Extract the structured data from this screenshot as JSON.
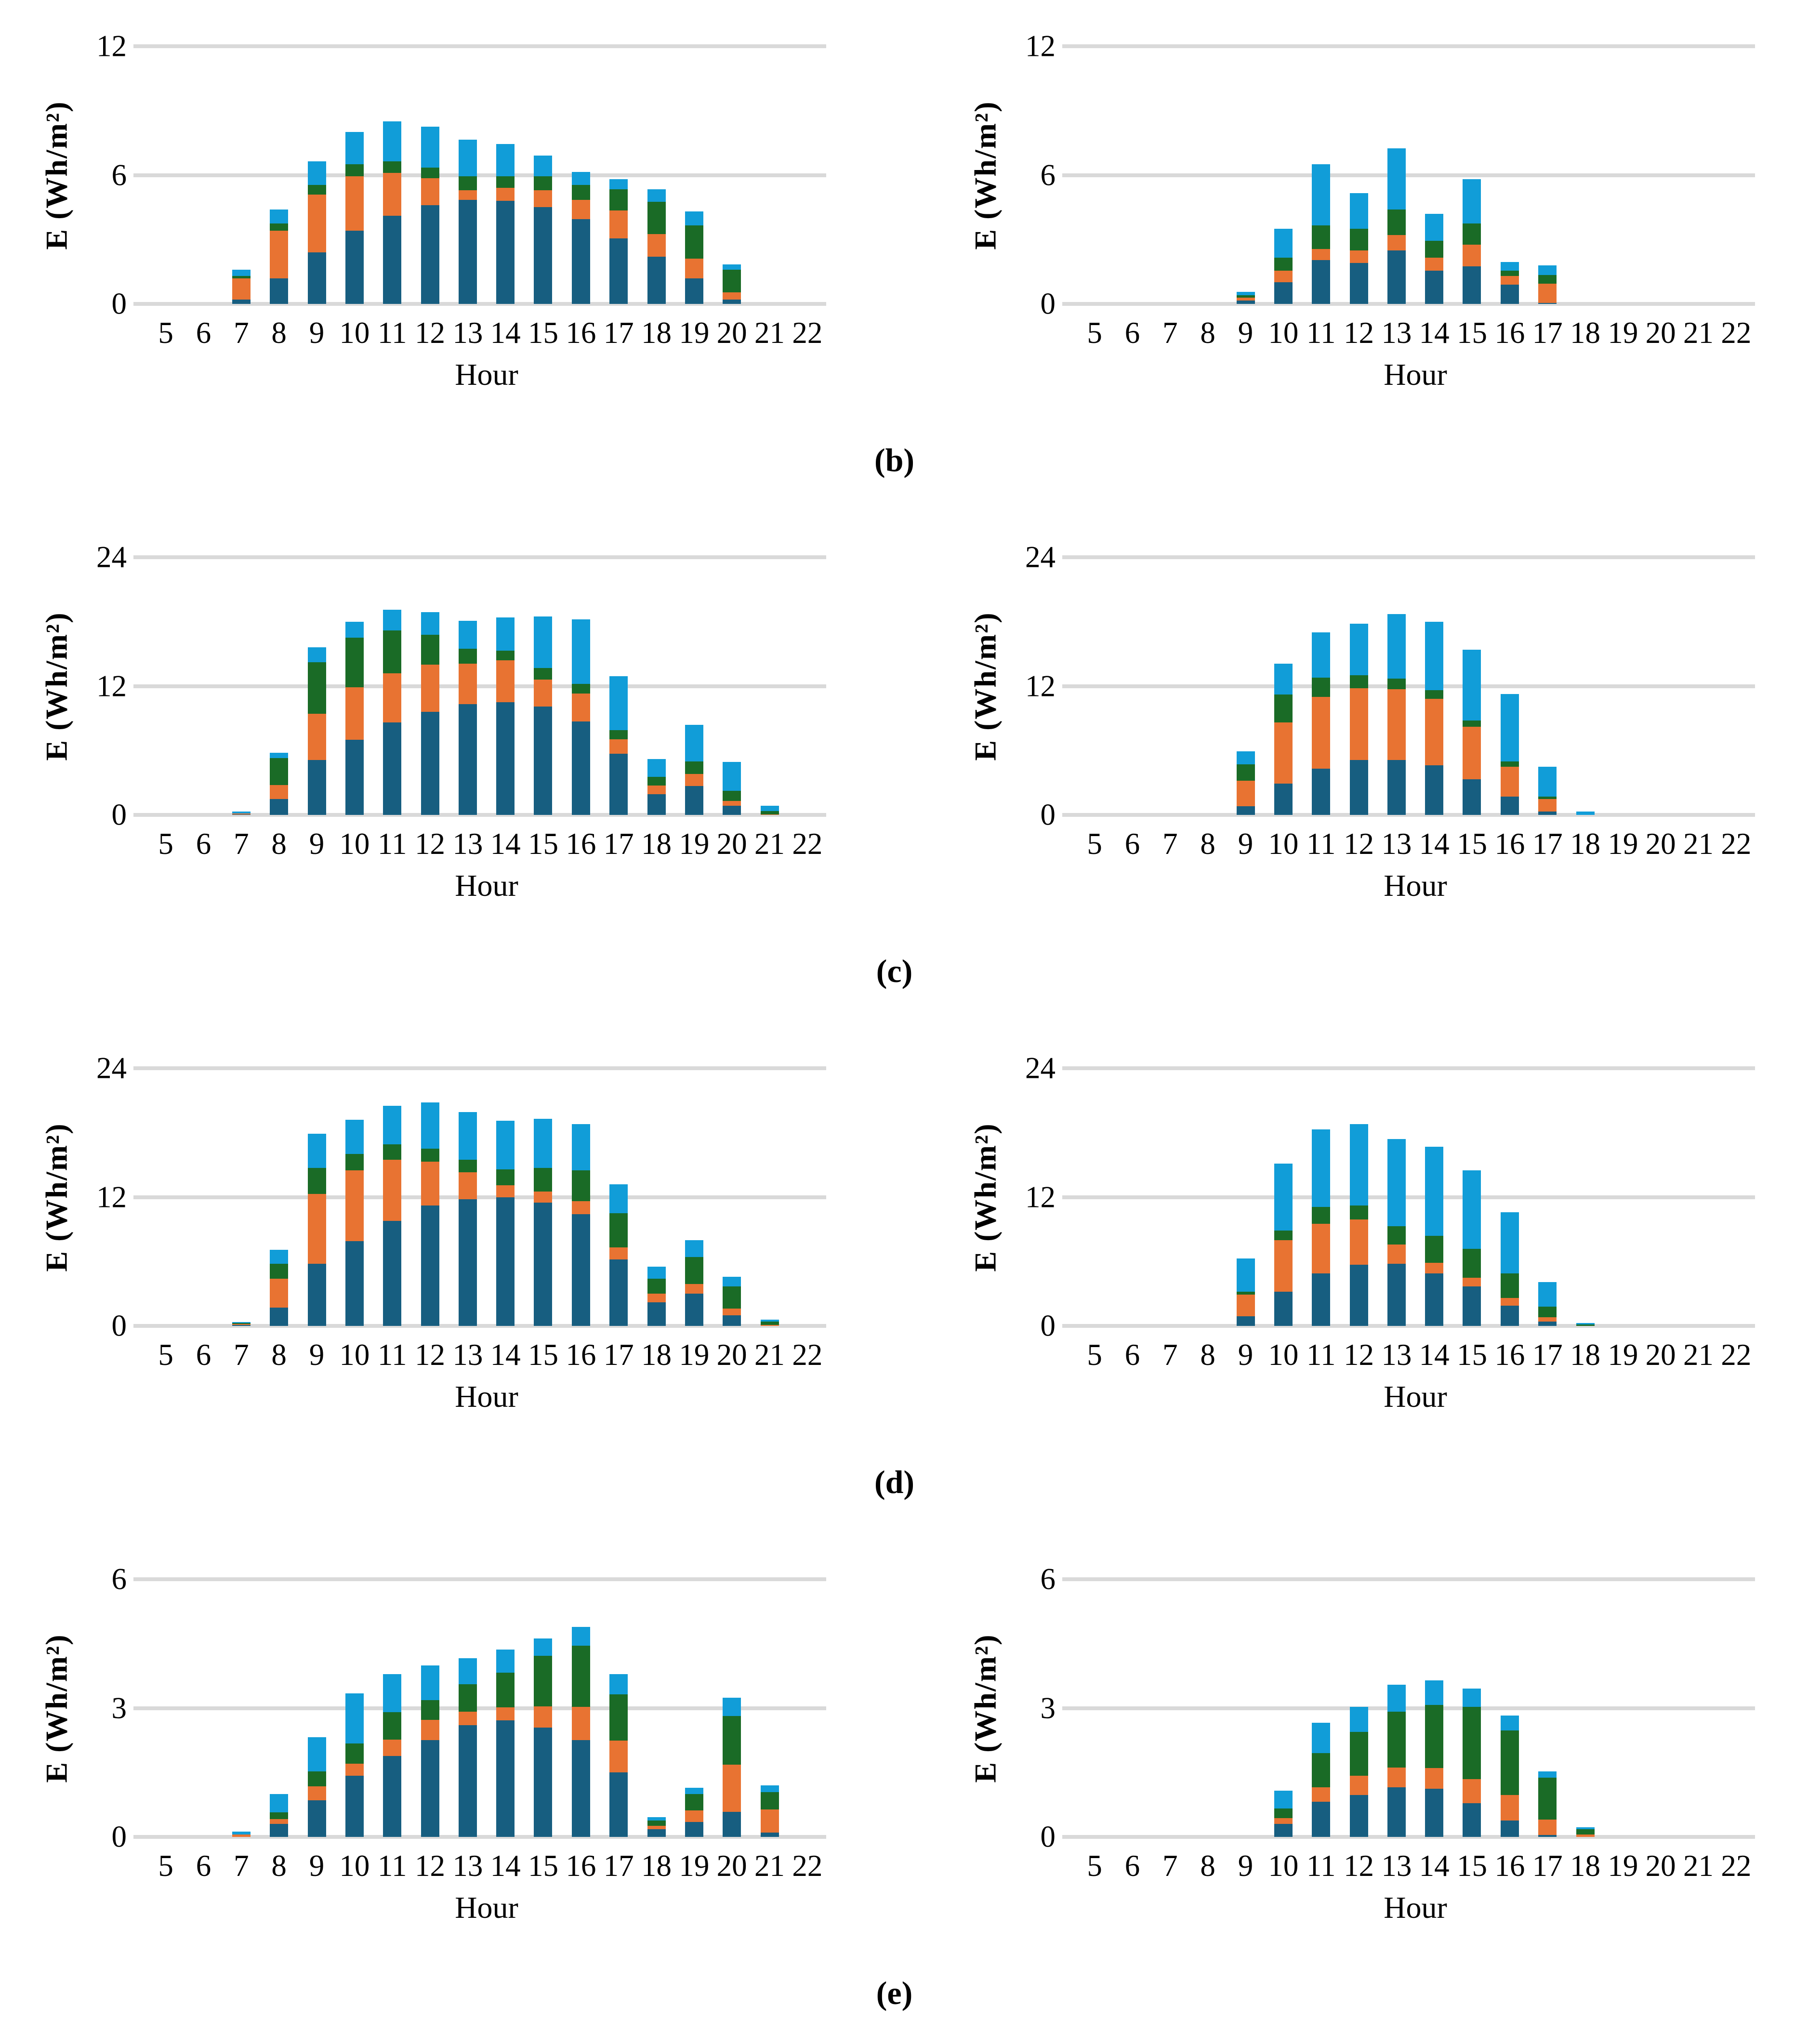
{
  "figure_labels": [
    "(b)",
    "(c)",
    "(d)",
    "(e)"
  ],
  "axis": {
    "xlabel": "Hour",
    "ylabel": "E (Wh/m²)"
  },
  "colors": {
    "dark_blue": "#175E80",
    "orange": "#E87332",
    "green": "#1A6B26",
    "light_blue": "#119DD8",
    "gridline": "#D9D9D9",
    "text": "#000000"
  },
  "chart_data": [
    {
      "id": "b-left",
      "row_label": "b",
      "side": "left",
      "type": "bar",
      "stacked": true,
      "title": "",
      "xlabel": "Hour",
      "ylabel": "E (Wh/m²)",
      "ylim": [
        0,
        12
      ],
      "yticks": [
        0,
        6,
        12
      ],
      "grid": true,
      "legend": "none",
      "categories": [
        5,
        6,
        7,
        8,
        9,
        10,
        11,
        12,
        13,
        14,
        15,
        16,
        17,
        18,
        19,
        20,
        21,
        22
      ],
      "series": [
        {
          "name": "dark blue",
          "color": "#175E80",
          "values": [
            0,
            0,
            0.2,
            1.2,
            2.4,
            3.4,
            4.1,
            4.6,
            4.85,
            4.8,
            4.5,
            3.95,
            3.05,
            2.2,
            1.2,
            0.2,
            0,
            0
          ]
        },
        {
          "name": "orange",
          "color": "#E87332",
          "values": [
            0,
            0,
            1.0,
            2.2,
            2.7,
            2.55,
            2.0,
            1.25,
            0.45,
            0.6,
            0.8,
            0.9,
            1.3,
            1.05,
            0.9,
            0.35,
            0,
            0
          ]
        },
        {
          "name": "dark green",
          "color": "#1A6B26",
          "values": [
            0,
            0,
            0.1,
            0.35,
            0.45,
            0.55,
            0.55,
            0.5,
            0.65,
            0.55,
            0.65,
            0.7,
            1.0,
            1.5,
            1.55,
            1.05,
            0,
            0
          ]
        },
        {
          "name": "light blue",
          "color": "#119DD8",
          "values": [
            0,
            0,
            0.3,
            0.65,
            1.1,
            1.5,
            1.85,
            1.9,
            1.7,
            1.5,
            0.95,
            0.6,
            0.45,
            0.6,
            0.65,
            0.25,
            0,
            0
          ]
        }
      ]
    },
    {
      "id": "b-right",
      "row_label": "b",
      "side": "right",
      "type": "bar",
      "stacked": true,
      "title": "",
      "xlabel": "Hour",
      "ylabel": "E (Wh/m²)",
      "ylim": [
        0,
        12
      ],
      "yticks": [
        0,
        6,
        12
      ],
      "grid": true,
      "legend": "none",
      "categories": [
        5,
        6,
        7,
        8,
        9,
        10,
        11,
        12,
        13,
        14,
        15,
        16,
        17,
        18,
        19,
        20,
        21,
        22
      ],
      "series": [
        {
          "name": "dark blue",
          "color": "#175E80",
          "values": [
            0,
            0,
            0,
            0,
            0.15,
            1.0,
            2.05,
            1.9,
            2.5,
            1.55,
            1.75,
            0.9,
            0.05,
            0,
            0,
            0,
            0,
            0
          ]
        },
        {
          "name": "orange",
          "color": "#E87332",
          "values": [
            0,
            0,
            0,
            0,
            0.15,
            0.55,
            0.5,
            0.6,
            0.7,
            0.6,
            1.0,
            0.4,
            0.9,
            0,
            0,
            0,
            0,
            0
          ]
        },
        {
          "name": "dark green",
          "color": "#1A6B26",
          "values": [
            0,
            0,
            0,
            0,
            0.1,
            0.6,
            1.1,
            1.0,
            1.2,
            0.8,
            1.0,
            0.25,
            0.4,
            0,
            0,
            0,
            0,
            0
          ]
        },
        {
          "name": "light blue",
          "color": "#119DD8",
          "values": [
            0,
            0,
            0,
            0,
            0.15,
            1.35,
            2.85,
            1.65,
            2.85,
            1.25,
            2.05,
            0.4,
            0.45,
            0,
            0,
            0,
            0,
            0
          ]
        }
      ]
    },
    {
      "id": "c-left",
      "row_label": "c",
      "side": "left",
      "type": "bar",
      "stacked": true,
      "title": "",
      "xlabel": "Hour",
      "ylabel": "E (Wh/m²)",
      "ylim": [
        0,
        24
      ],
      "yticks": [
        0,
        12,
        24
      ],
      "grid": true,
      "legend": "none",
      "categories": [
        5,
        6,
        7,
        8,
        9,
        10,
        11,
        12,
        13,
        14,
        15,
        16,
        17,
        18,
        19,
        20,
        21,
        22
      ],
      "series": [
        {
          "name": "dark blue",
          "color": "#175E80",
          "values": [
            0,
            0,
            0.05,
            1.5,
            5.1,
            7.0,
            8.6,
            9.6,
            10.3,
            10.5,
            10.1,
            8.7,
            5.7,
            1.95,
            2.7,
            0.85,
            0,
            0
          ]
        },
        {
          "name": "orange",
          "color": "#E87332",
          "values": [
            0,
            0,
            0.1,
            1.3,
            4.3,
            4.9,
            4.6,
            4.4,
            3.8,
            3.9,
            2.5,
            2.6,
            1.35,
            0.8,
            1.1,
            0.45,
            0.05,
            0
          ]
        },
        {
          "name": "dark green",
          "color": "#1A6B26",
          "values": [
            0,
            0,
            0,
            2.5,
            4.8,
            4.6,
            4.0,
            2.8,
            1.4,
            0.9,
            1.1,
            0.9,
            0.85,
            0.8,
            1.2,
            0.95,
            0.3,
            0
          ]
        },
        {
          "name": "light blue",
          "color": "#119DD8",
          "values": [
            0,
            0,
            0.15,
            0.5,
            1.4,
            1.5,
            1.9,
            2.1,
            2.6,
            3.1,
            4.8,
            6.0,
            5.0,
            1.65,
            3.4,
            2.7,
            0.5,
            0
          ]
        }
      ]
    },
    {
      "id": "c-right",
      "row_label": "c",
      "side": "right",
      "type": "bar",
      "stacked": true,
      "title": "",
      "xlabel": "Hour",
      "ylabel": "E (Wh/m²)",
      "ylim": [
        0,
        24
      ],
      "yticks": [
        0,
        12,
        24
      ],
      "grid": true,
      "legend": "none",
      "categories": [
        5,
        6,
        7,
        8,
        9,
        10,
        11,
        12,
        13,
        14,
        15,
        16,
        17,
        18,
        19,
        20,
        21,
        22
      ],
      "series": [
        {
          "name": "dark blue",
          "color": "#175E80",
          "values": [
            0,
            0,
            0,
            0,
            0.8,
            2.9,
            4.3,
            5.1,
            5.1,
            4.6,
            3.3,
            1.7,
            0.3,
            0,
            0,
            0,
            0,
            0
          ]
        },
        {
          "name": "orange",
          "color": "#E87332",
          "values": [
            0,
            0,
            0,
            0,
            2.4,
            5.7,
            6.7,
            6.7,
            6.6,
            6.2,
            4.9,
            2.8,
            1.2,
            0,
            0,
            0,
            0,
            0
          ]
        },
        {
          "name": "dark green",
          "color": "#1A6B26",
          "values": [
            0,
            0,
            0,
            0,
            1.5,
            2.6,
            1.8,
            1.2,
            1.0,
            0.8,
            0.6,
            0.5,
            0.2,
            0,
            0,
            0,
            0,
            0
          ]
        },
        {
          "name": "light blue",
          "color": "#119DD8",
          "values": [
            0,
            0,
            0,
            0,
            1.2,
            2.9,
            4.2,
            4.8,
            6.0,
            6.4,
            6.6,
            6.25,
            2.8,
            0.3,
            0,
            0,
            0,
            0
          ]
        }
      ]
    },
    {
      "id": "d-left",
      "row_label": "d",
      "side": "left",
      "type": "bar",
      "stacked": true,
      "title": "",
      "xlabel": "Hour",
      "ylabel": "E (Wh/m²)",
      "ylim": [
        0,
        24
      ],
      "yticks": [
        0,
        12,
        24
      ],
      "grid": true,
      "legend": "none",
      "categories": [
        5,
        6,
        7,
        8,
        9,
        10,
        11,
        12,
        13,
        14,
        15,
        16,
        17,
        18,
        19,
        20,
        21,
        22
      ],
      "series": [
        {
          "name": "dark blue",
          "color": "#175E80",
          "values": [
            0,
            0,
            0.1,
            1.7,
            5.8,
            7.9,
            9.8,
            11.2,
            11.8,
            12.0,
            11.5,
            10.4,
            6.2,
            2.2,
            3.0,
            1.0,
            0,
            0
          ]
        },
        {
          "name": "orange",
          "color": "#E87332",
          "values": [
            0,
            0,
            0.1,
            2.7,
            6.5,
            6.6,
            5.7,
            4.1,
            2.5,
            1.1,
            1.0,
            1.2,
            1.1,
            0.8,
            0.9,
            0.6,
            0.1,
            0
          ]
        },
        {
          "name": "dark green",
          "color": "#1A6B26",
          "values": [
            0,
            0,
            0.05,
            1.4,
            2.4,
            1.5,
            1.4,
            1.2,
            1.2,
            1.5,
            2.2,
            2.9,
            3.2,
            1.4,
            2.5,
            2.1,
            0.3,
            0
          ]
        },
        {
          "name": "light blue",
          "color": "#119DD8",
          "values": [
            0,
            0,
            0.1,
            1.3,
            3.2,
            3.2,
            3.6,
            4.3,
            4.4,
            4.5,
            4.6,
            4.3,
            2.7,
            1.1,
            1.6,
            0.9,
            0.2,
            0
          ]
        }
      ]
    },
    {
      "id": "d-right",
      "row_label": "d",
      "side": "right",
      "type": "bar",
      "stacked": true,
      "title": "",
      "xlabel": "Hour",
      "ylabel": "E (Wh/m²)",
      "ylim": [
        0,
        24
      ],
      "yticks": [
        0,
        12,
        24
      ],
      "grid": true,
      "legend": "none",
      "categories": [
        5,
        6,
        7,
        8,
        9,
        10,
        11,
        12,
        13,
        14,
        15,
        16,
        17,
        18,
        19,
        20,
        21,
        22
      ],
      "series": [
        {
          "name": "dark blue",
          "color": "#175E80",
          "values": [
            0,
            0,
            0,
            0,
            0.9,
            3.2,
            4.9,
            5.7,
            5.8,
            4.9,
            3.7,
            1.9,
            0.4,
            0,
            0,
            0,
            0,
            0
          ]
        },
        {
          "name": "orange",
          "color": "#E87332",
          "values": [
            0,
            0,
            0,
            0,
            2.0,
            4.8,
            4.6,
            4.2,
            1.8,
            1.0,
            0.8,
            0.7,
            0.4,
            0,
            0,
            0,
            0,
            0
          ]
        },
        {
          "name": "dark green",
          "color": "#1A6B26",
          "values": [
            0,
            0,
            0,
            0,
            0.3,
            0.9,
            1.6,
            1.3,
            1.7,
            2.5,
            2.7,
            2.3,
            1.0,
            0.15,
            0,
            0,
            0,
            0
          ]
        },
        {
          "name": "light blue",
          "color": "#119DD8",
          "values": [
            0,
            0,
            0,
            0,
            3.1,
            6.2,
            7.2,
            7.6,
            8.1,
            8.3,
            7.3,
            5.7,
            2.3,
            0.1,
            0,
            0,
            0,
            0
          ]
        }
      ]
    },
    {
      "id": "e-left",
      "row_label": "e",
      "side": "left",
      "type": "bar",
      "stacked": true,
      "title": "",
      "xlabel": "Hour",
      "ylabel": "E (Wh/m²)",
      "ylim": [
        0,
        6
      ],
      "yticks": [
        0,
        3,
        6
      ],
      "grid": true,
      "legend": "none",
      "categories": [
        5,
        6,
        7,
        8,
        9,
        10,
        11,
        12,
        13,
        14,
        15,
        16,
        17,
        18,
        19,
        20,
        21,
        22
      ],
      "series": [
        {
          "name": "dark blue",
          "color": "#175E80",
          "values": [
            0,
            0,
            0,
            0.3,
            0.85,
            1.42,
            1.88,
            2.25,
            2.6,
            2.71,
            2.55,
            2.25,
            1.5,
            0.18,
            0.35,
            0.58,
            0.1,
            0
          ]
        },
        {
          "name": "orange",
          "color": "#E87332",
          "values": [
            0,
            0,
            0.06,
            0.12,
            0.33,
            0.29,
            0.39,
            0.47,
            0.32,
            0.31,
            0.49,
            0.78,
            0.74,
            0.08,
            0.27,
            1.1,
            0.54,
            0
          ]
        },
        {
          "name": "dark green",
          "color": "#1A6B26",
          "values": [
            0,
            0,
            0,
            0.15,
            0.34,
            0.47,
            0.64,
            0.46,
            0.64,
            0.8,
            1.18,
            1.42,
            1.08,
            0.12,
            0.38,
            1.14,
            0.4,
            0
          ]
        },
        {
          "name": "light blue",
          "color": "#119DD8",
          "values": [
            0,
            0,
            0.06,
            0.43,
            0.8,
            1.16,
            0.88,
            0.81,
            0.6,
            0.54,
            0.4,
            0.44,
            0.47,
            0.08,
            0.14,
            0.42,
            0.16,
            0
          ]
        }
      ]
    },
    {
      "id": "e-right",
      "row_label": "e",
      "side": "right",
      "type": "bar",
      "stacked": true,
      "title": "",
      "xlabel": "Hour",
      "ylabel": "E (Wh/m²)",
      "ylim": [
        0,
        6
      ],
      "yticks": [
        0,
        3,
        6
      ],
      "grid": true,
      "legend": "none",
      "categories": [
        5,
        6,
        7,
        8,
        9,
        10,
        11,
        12,
        13,
        14,
        15,
        16,
        17,
        18,
        19,
        20,
        21,
        22
      ],
      "series": [
        {
          "name": "dark blue",
          "color": "#175E80",
          "values": [
            0,
            0,
            0,
            0,
            0,
            0.3,
            0.82,
            0.98,
            1.15,
            1.12,
            0.78,
            0.38,
            0.05,
            0,
            0,
            0,
            0,
            0
          ]
        },
        {
          "name": "orange",
          "color": "#E87332",
          "values": [
            0,
            0,
            0,
            0,
            0,
            0.14,
            0.33,
            0.45,
            0.47,
            0.48,
            0.57,
            0.6,
            0.35,
            0.06,
            0,
            0,
            0,
            0
          ]
        },
        {
          "name": "dark green",
          "color": "#1A6B26",
          "values": [
            0,
            0,
            0,
            0,
            0,
            0.22,
            0.8,
            1.02,
            1.3,
            1.47,
            1.68,
            1.5,
            0.98,
            0.12,
            0,
            0,
            0,
            0
          ]
        },
        {
          "name": "light blue",
          "color": "#119DD8",
          "values": [
            0,
            0,
            0,
            0,
            0,
            0.42,
            0.71,
            0.58,
            0.62,
            0.57,
            0.43,
            0.35,
            0.15,
            0.04,
            0,
            0,
            0,
            0
          ]
        }
      ]
    }
  ]
}
